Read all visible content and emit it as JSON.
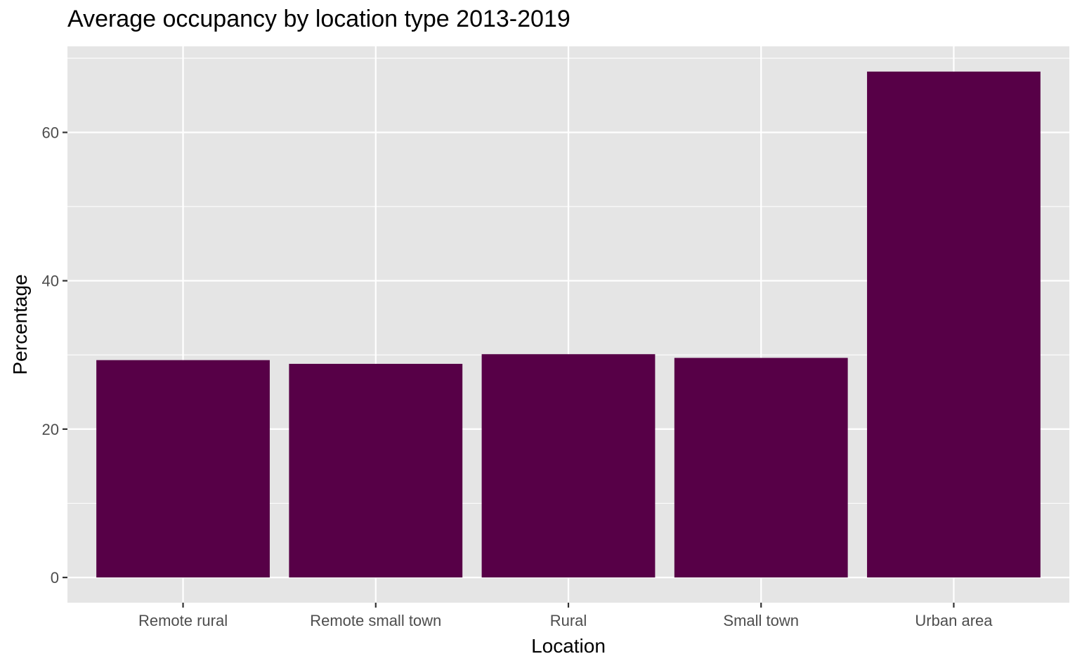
{
  "chart_data": {
    "type": "bar",
    "title": "Average occupancy by location type 2013-2019",
    "xlabel": "Location",
    "ylabel": "Percentage",
    "categories": [
      "Remote rural",
      "Remote small town",
      "Rural",
      "Small town",
      "Urban area"
    ],
    "values": [
      29.3,
      28.8,
      30.1,
      29.6,
      68.2
    ],
    "ylim": [
      -3.4,
      71.6
    ],
    "yticks": [
      0,
      20,
      40,
      60
    ],
    "ytick_labels": [
      "0",
      "20",
      "40",
      "60"
    ],
    "grid": true,
    "legend": "none",
    "colors": {
      "bar": "#570047",
      "panel_background": "#E5E5E5",
      "grid": "#FFFFFF",
      "tick_text": "#4D4D4D",
      "tick_mark": "#333333",
      "label_text": "#000000"
    }
  }
}
